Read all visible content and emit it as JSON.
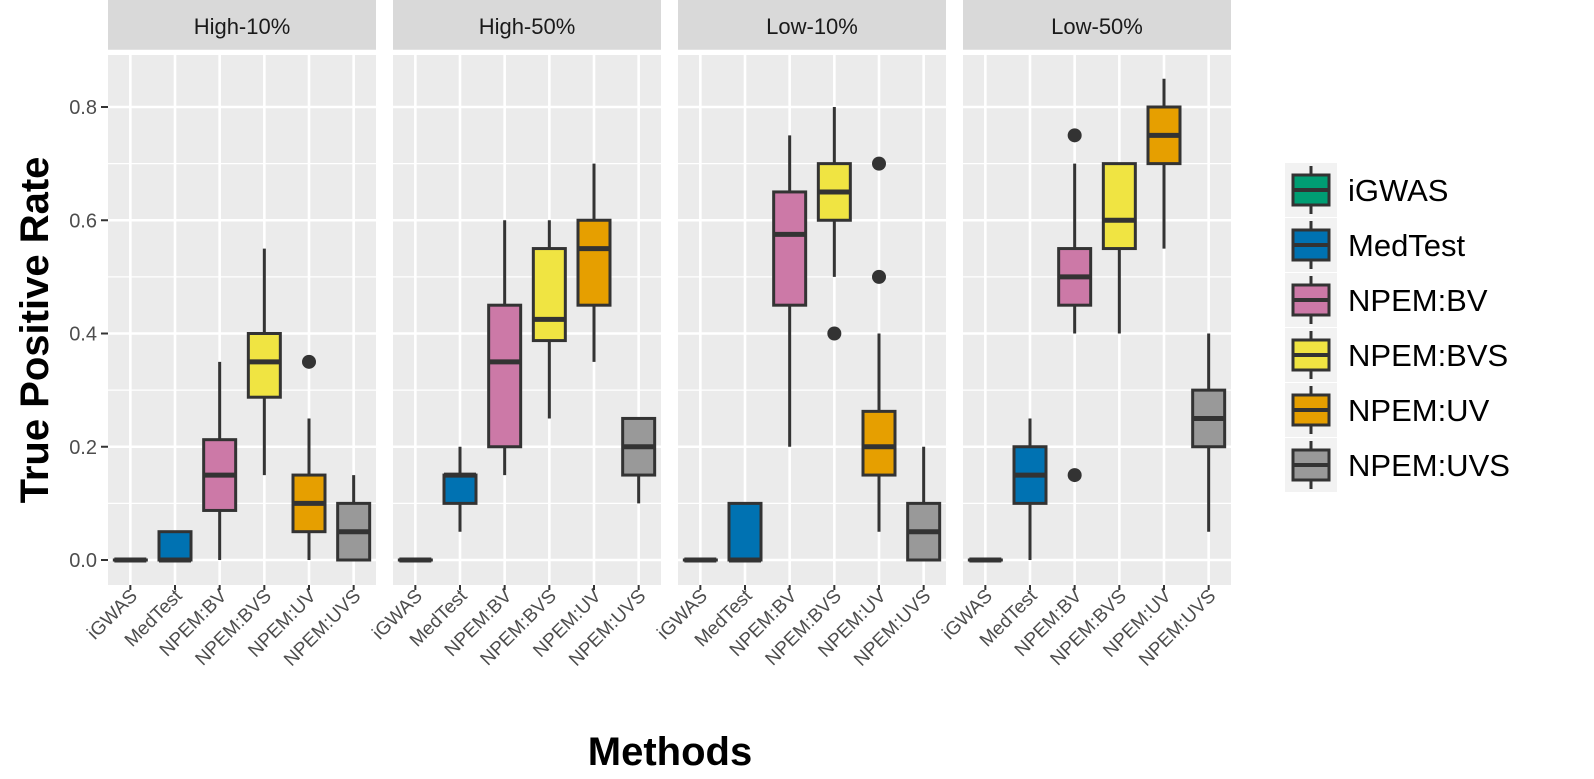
{
  "chart_data": {
    "type": "boxplot",
    "ylabel": "True Positive Rate",
    "xlabel": "Methods",
    "ylim": [
      -0.03,
      0.9
    ],
    "yticks": [
      0.0,
      0.2,
      0.4,
      0.6,
      0.8
    ],
    "ytick_labels": [
      "0.0",
      "0.2",
      "0.4",
      "0.6",
      "0.8"
    ],
    "grid": true,
    "legend_position": "right",
    "categories": [
      "iGWAS",
      "MedTest",
      "NPEM:BV",
      "NPEM:BVS",
      "NPEM:UV",
      "NPEM:UVS"
    ],
    "colors": {
      "iGWAS": "#009E73",
      "MedTest": "#0072B2",
      "NPEM:BV": "#CC79A7",
      "NPEM:BVS": "#F0E442",
      "NPEM:UV": "#E69F00",
      "NPEM:UVS": "#999999"
    },
    "panels": [
      {
        "title": "High-10%",
        "boxes": [
          {
            "min": 0,
            "q1": 0,
            "median": 0,
            "q3": 0,
            "max": 0,
            "outliers": []
          },
          {
            "min": 0,
            "q1": 0,
            "median": 0,
            "q3": 0.05,
            "max": 0.05,
            "outliers": []
          },
          {
            "min": 0,
            "q1": 0.0875,
            "median": 0.15,
            "q3": 0.2125,
            "max": 0.35,
            "outliers": []
          },
          {
            "min": 0.15,
            "q1": 0.2875,
            "median": 0.35,
            "q3": 0.4,
            "max": 0.55,
            "outliers": []
          },
          {
            "min": 0,
            "q1": 0.05,
            "median": 0.1,
            "q3": 0.15,
            "max": 0.25,
            "outliers": [
              0.35
            ]
          },
          {
            "min": 0,
            "q1": 0,
            "median": 0.05,
            "q3": 0.1,
            "max": 0.15,
            "outliers": []
          }
        ]
      },
      {
        "title": "High-50%",
        "boxes": [
          {
            "min": 0,
            "q1": 0,
            "median": 0,
            "q3": 0,
            "max": 0,
            "outliers": []
          },
          {
            "min": 0.05,
            "q1": 0.1,
            "median": 0.15,
            "q3": 0.15,
            "max": 0.2,
            "outliers": []
          },
          {
            "min": 0.15,
            "q1": 0.2,
            "median": 0.35,
            "q3": 0.45,
            "max": 0.6,
            "outliers": []
          },
          {
            "min": 0.25,
            "q1": 0.3875,
            "median": 0.425,
            "q3": 0.55,
            "max": 0.6,
            "outliers": []
          },
          {
            "min": 0.35,
            "q1": 0.45,
            "median": 0.55,
            "q3": 0.6,
            "max": 0.7,
            "outliers": []
          },
          {
            "min": 0.1,
            "q1": 0.15,
            "median": 0.2,
            "q3": 0.25,
            "max": 0.25,
            "outliers": []
          }
        ]
      },
      {
        "title": "Low-10%",
        "boxes": [
          {
            "min": 0,
            "q1": 0,
            "median": 0,
            "q3": 0,
            "max": 0,
            "outliers": []
          },
          {
            "min": 0,
            "q1": 0,
            "median": 0,
            "q3": 0.1,
            "max": 0.1,
            "outliers": []
          },
          {
            "min": 0.2,
            "q1": 0.45,
            "median": 0.575,
            "q3": 0.65,
            "max": 0.75,
            "outliers": []
          },
          {
            "min": 0.5,
            "q1": 0.6,
            "median": 0.65,
            "q3": 0.7,
            "max": 0.8,
            "outliers": [
              0.4
            ]
          },
          {
            "min": 0.05,
            "q1": 0.15,
            "median": 0.2,
            "q3": 0.2625,
            "max": 0.4,
            "outliers": [
              0.5,
              0.7
            ]
          },
          {
            "min": 0,
            "q1": 0,
            "median": 0.05,
            "q3": 0.1,
            "max": 0.2,
            "outliers": []
          }
        ]
      },
      {
        "title": "Low-50%",
        "boxes": [
          {
            "min": 0,
            "q1": 0,
            "median": 0,
            "q3": 0,
            "max": 0,
            "outliers": []
          },
          {
            "min": 0,
            "q1": 0.1,
            "median": 0.15,
            "q3": 0.2,
            "max": 0.25,
            "outliers": []
          },
          {
            "min": 0.4,
            "q1": 0.45,
            "median": 0.5,
            "q3": 0.55,
            "max": 0.7,
            "outliers": [
              0.75,
              0.15
            ]
          },
          {
            "min": 0.4,
            "q1": 0.55,
            "median": 0.6,
            "q3": 0.7,
            "max": 0.7,
            "outliers": []
          },
          {
            "min": 0.55,
            "q1": 0.7,
            "median": 0.75,
            "q3": 0.8,
            "max": 0.85,
            "outliers": []
          },
          {
            "min": 0.05,
            "q1": 0.2,
            "median": 0.25,
            "q3": 0.3,
            "max": 0.4,
            "outliers": []
          }
        ]
      }
    ]
  }
}
